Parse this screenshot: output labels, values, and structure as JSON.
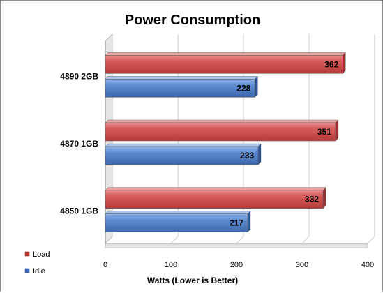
{
  "chart_data": {
    "type": "bar",
    "orientation": "horizontal",
    "title": "Power Consumption",
    "categories": [
      "4890 2GB",
      "4870 1GB",
      "4850 1GB"
    ],
    "series": [
      {
        "name": "Load",
        "values": [
          362,
          351,
          332
        ],
        "color": "#d05050"
      },
      {
        "name": "Idle",
        "values": [
          228,
          233,
          217
        ],
        "color": "#4f7fc9"
      }
    ],
    "xlabel": "Watts (Lower is Better)",
    "ylabel": "",
    "xlim": [
      0,
      400
    ],
    "x_ticks": [
      "0",
      "100",
      "200",
      "300",
      "400"
    ],
    "grid": true,
    "legend": "bottom-left"
  }
}
